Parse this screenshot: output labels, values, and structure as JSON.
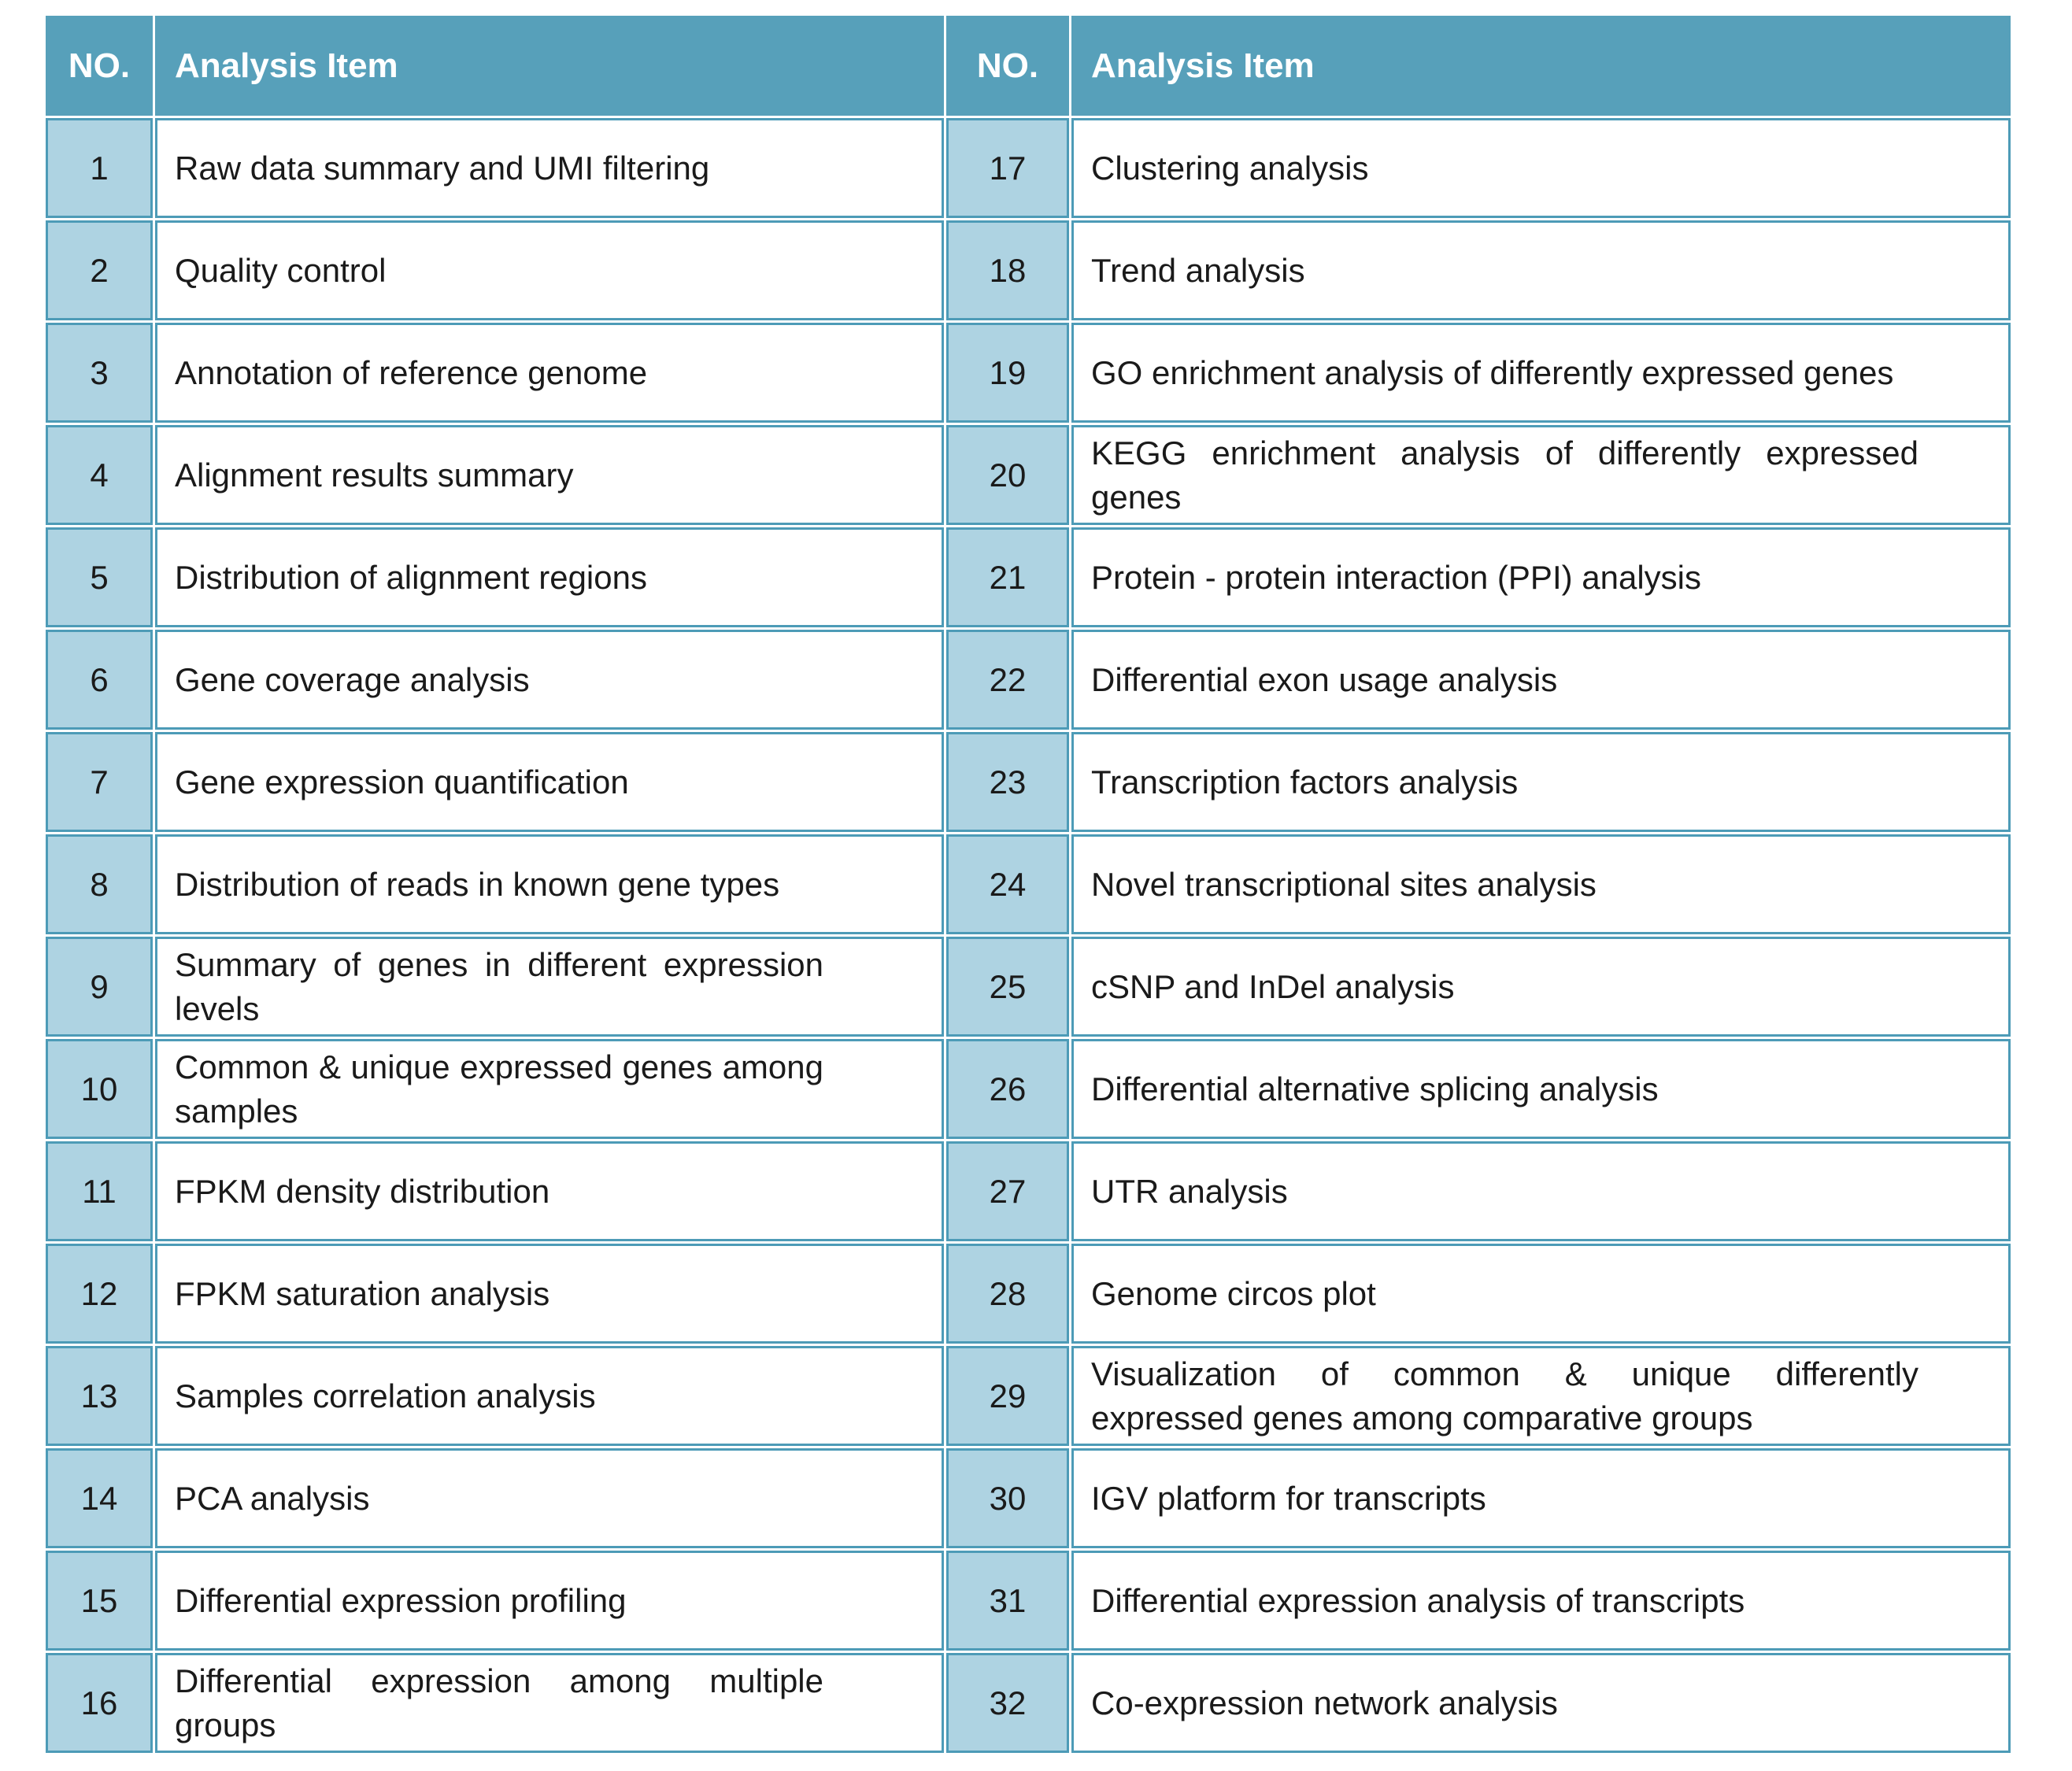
{
  "colors": {
    "header_bg": "#57a0ba",
    "header_text": "#ffffff",
    "number_cell_bg": "#aed3e2",
    "border": "#4d9bb7",
    "item_cell_bg": "#ffffff",
    "text": "#1a1a1a"
  },
  "header": {
    "no_label": "NO.",
    "item_label": "Analysis Item"
  },
  "rows": [
    {
      "no": "1",
      "item": "Raw data summary and UMI filtering"
    },
    {
      "no": "2",
      "item": "Quality control"
    },
    {
      "no": "3",
      "item": "Annotation of reference genome"
    },
    {
      "no": "4",
      "item": "Alignment results summary"
    },
    {
      "no": "5",
      "item": "Distribution of alignment regions"
    },
    {
      "no": "6",
      "item": "Gene coverage analysis"
    },
    {
      "no": "7",
      "item": "Gene expression quantification"
    },
    {
      "no": "8",
      "item": "Distribution of reads in known gene types"
    },
    {
      "no": "9",
      "item": [
        "Summary of genes in different expression",
        "levels"
      ]
    },
    {
      "no": "10",
      "item": [
        "Common & unique expressed genes among",
        "samples"
      ]
    },
    {
      "no": "11",
      "item": "FPKM density distribution"
    },
    {
      "no": "12",
      "item": "FPKM saturation analysis"
    },
    {
      "no": "13",
      "item": "Samples correlation analysis"
    },
    {
      "no": "14",
      "item": "PCA analysis"
    },
    {
      "no": "15",
      "item": "Differential expression profiling"
    },
    {
      "no": "16",
      "item": [
        "Differential expression among multiple",
        "groups"
      ]
    },
    {
      "no": "17",
      "item": "Clustering analysis"
    },
    {
      "no": "18",
      "item": "Trend analysis"
    },
    {
      "no": "19",
      "item": "GO enrichment analysis of differently expressed genes"
    },
    {
      "no": "20",
      "item": [
        "KEGG enrichment analysis of differently expressed",
        "genes"
      ]
    },
    {
      "no": "21",
      "item": "Protein - protein interaction (PPI) analysis"
    },
    {
      "no": "22",
      "item": "Differential exon usage analysis"
    },
    {
      "no": "23",
      "item": "Transcription factors analysis"
    },
    {
      "no": "24",
      "item": "Novel transcriptional sites analysis"
    },
    {
      "no": "25",
      "item": "cSNP and InDel analysis"
    },
    {
      "no": "26",
      "item": "Differential alternative splicing analysis"
    },
    {
      "no": "27",
      "item": "UTR analysis"
    },
    {
      "no": "28",
      "item": "Genome circos plot"
    },
    {
      "no": "29",
      "item": [
        "Visualization of common & unique differently",
        "expressed genes among comparative groups"
      ]
    },
    {
      "no": "30",
      "item": "IGV platform for transcripts"
    },
    {
      "no": "31",
      "item": "Differential expression analysis of transcripts"
    },
    {
      "no": "32",
      "item": "Co-expression network analysis"
    }
  ]
}
